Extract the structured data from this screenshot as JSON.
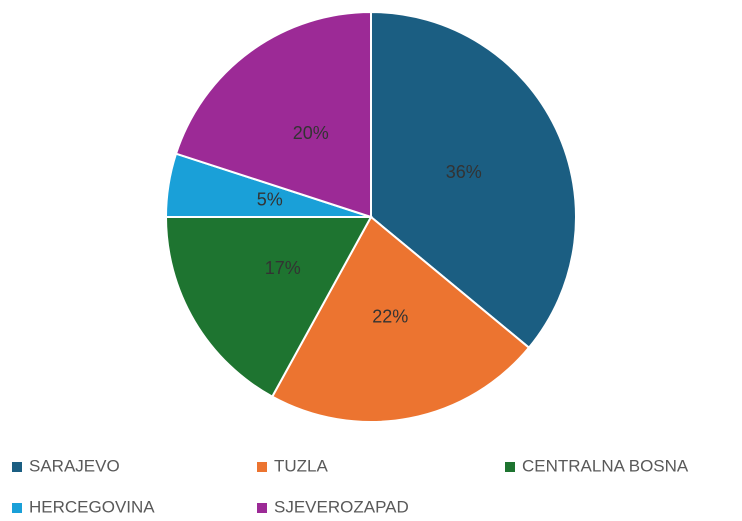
{
  "chart_data": {
    "type": "pie",
    "categories": [
      "SARAJEVO",
      "TUZLA",
      "CENTRALNA BOSNA",
      "HERCEGOVINA",
      "SJEVEROZAPAD"
    ],
    "values": [
      36,
      22,
      17,
      5,
      20
    ],
    "value_labels": [
      "36%",
      "22%",
      "17%",
      "5%",
      "20%"
    ],
    "colors": [
      "#1b5e82",
      "#ec7430",
      "#1e7430",
      "#1aa0d8",
      "#9c2a96"
    ],
    "legend": "bottom"
  }
}
